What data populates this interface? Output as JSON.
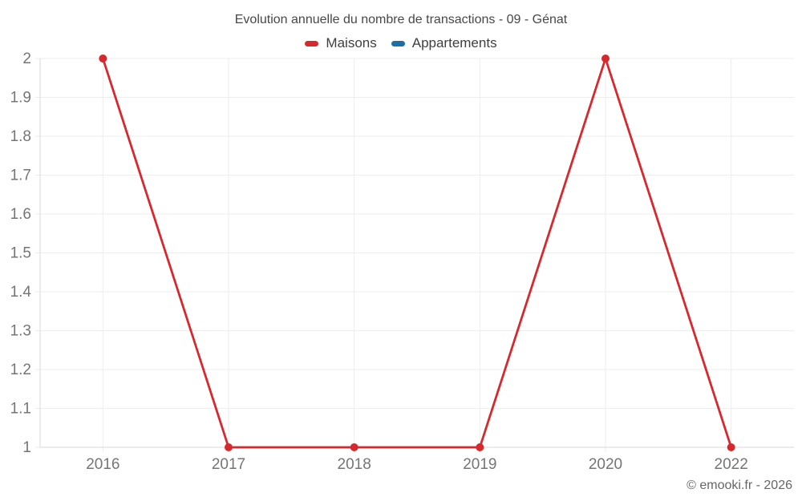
{
  "header": {
    "title": "Evolution annuelle du nombre de transactions - 09 - Génat"
  },
  "legend": {
    "items": [
      {
        "label": "Maisons",
        "color": "#d7292d"
      },
      {
        "label": "Appartements",
        "color": "#1c6fa6"
      }
    ]
  },
  "footer": {
    "credit": "© emooki.fr - 2026"
  },
  "chart_data": {
    "type": "line",
    "title": "Evolution annuelle du nombre de transactions - 09 - Génat",
    "categories": [
      "2016",
      "2017",
      "2018",
      "2019",
      "2020",
      "2022"
    ],
    "series": [
      {
        "name": "Maisons",
        "color": "#d7292d",
        "marker": "circle",
        "values": [
          2,
          1,
          1,
          1,
          2,
          1
        ]
      },
      {
        "name": "Appartements",
        "color": "#1c6fa6",
        "marker": "circle",
        "values": []
      }
    ],
    "xlabel": "",
    "ylabel": "",
    "ylim": [
      1,
      2
    ],
    "ytick_step": 0.1,
    "ytick_labels": [
      "1",
      "1.1",
      "1.2",
      "1.3",
      "1.4",
      "1.5",
      "1.6",
      "1.7",
      "1.8",
      "1.9",
      "2"
    ],
    "grid": true,
    "legend_position": "top",
    "colors": {
      "grid": "#ededed",
      "axis": "#d9d9d9",
      "tick_label": "#757575"
    }
  }
}
